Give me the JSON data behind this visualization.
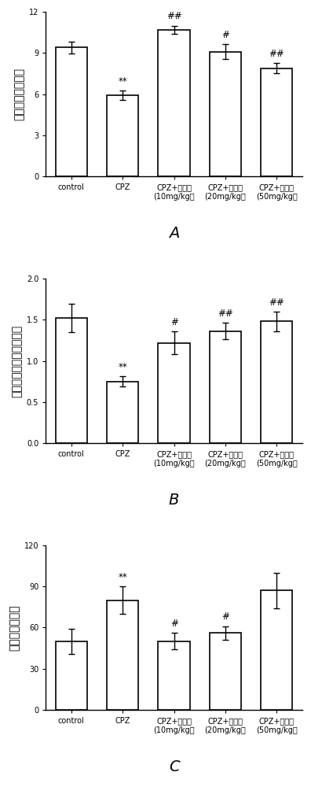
{
  "panel_A": {
    "ylabel": "总活动路程（米）",
    "ylim": [
      0,
      12
    ],
    "yticks": [
      0,
      3,
      6,
      9,
      12
    ],
    "values": [
      9.4,
      5.9,
      10.7,
      9.1,
      7.9
    ],
    "errors": [
      0.45,
      0.35,
      0.3,
      0.55,
      0.35
    ],
    "annotations": [
      "",
      "**",
      "##",
      "#",
      "##"
    ],
    "label": "A"
  },
  "panel_B": {
    "ylabel": "中间区域活动路程（米）",
    "ylim": [
      0.0,
      2.0
    ],
    "yticks": [
      0.0,
      0.5,
      1.0,
      1.5,
      2.0
    ],
    "values": [
      1.52,
      0.75,
      1.22,
      1.36,
      1.48
    ],
    "errors": [
      0.17,
      0.06,
      0.14,
      0.1,
      0.12
    ],
    "annotations": [
      "",
      "**",
      "#",
      "##",
      "##"
    ],
    "label": "B"
  },
  "panel_C": {
    "ylabel": "不动时间（秒）",
    "ylim": [
      0,
      120
    ],
    "yticks": [
      0,
      30,
      60,
      90,
      120
    ],
    "values": [
      50,
      80,
      50,
      56,
      87
    ],
    "errors": [
      9,
      10,
      6,
      5,
      13
    ],
    "annotations": [
      "",
      "**",
      "#",
      "#",
      ""
    ],
    "label": "C"
  },
  "categories_line1": [
    "control",
    "CPZ",
    "CPZ+鸢尾苷",
    "CPZ+鸢尾苷",
    "CPZ+鸢尾苷"
  ],
  "categories_line2": [
    "",
    "",
    "(10mg/kg）",
    "(20mg/kg）",
    "(50mg/kg）"
  ],
  "bar_color": "#ffffff",
  "bar_edgecolor": "#000000",
  "bar_linewidth": 1.2,
  "bar_width": 0.62,
  "annot_fontsize": 8.5,
  "tick_fontsize": 7.0,
  "ylabel_fontsize": 10,
  "label_fontsize": 14,
  "capsize": 3,
  "elinewidth": 1.0
}
